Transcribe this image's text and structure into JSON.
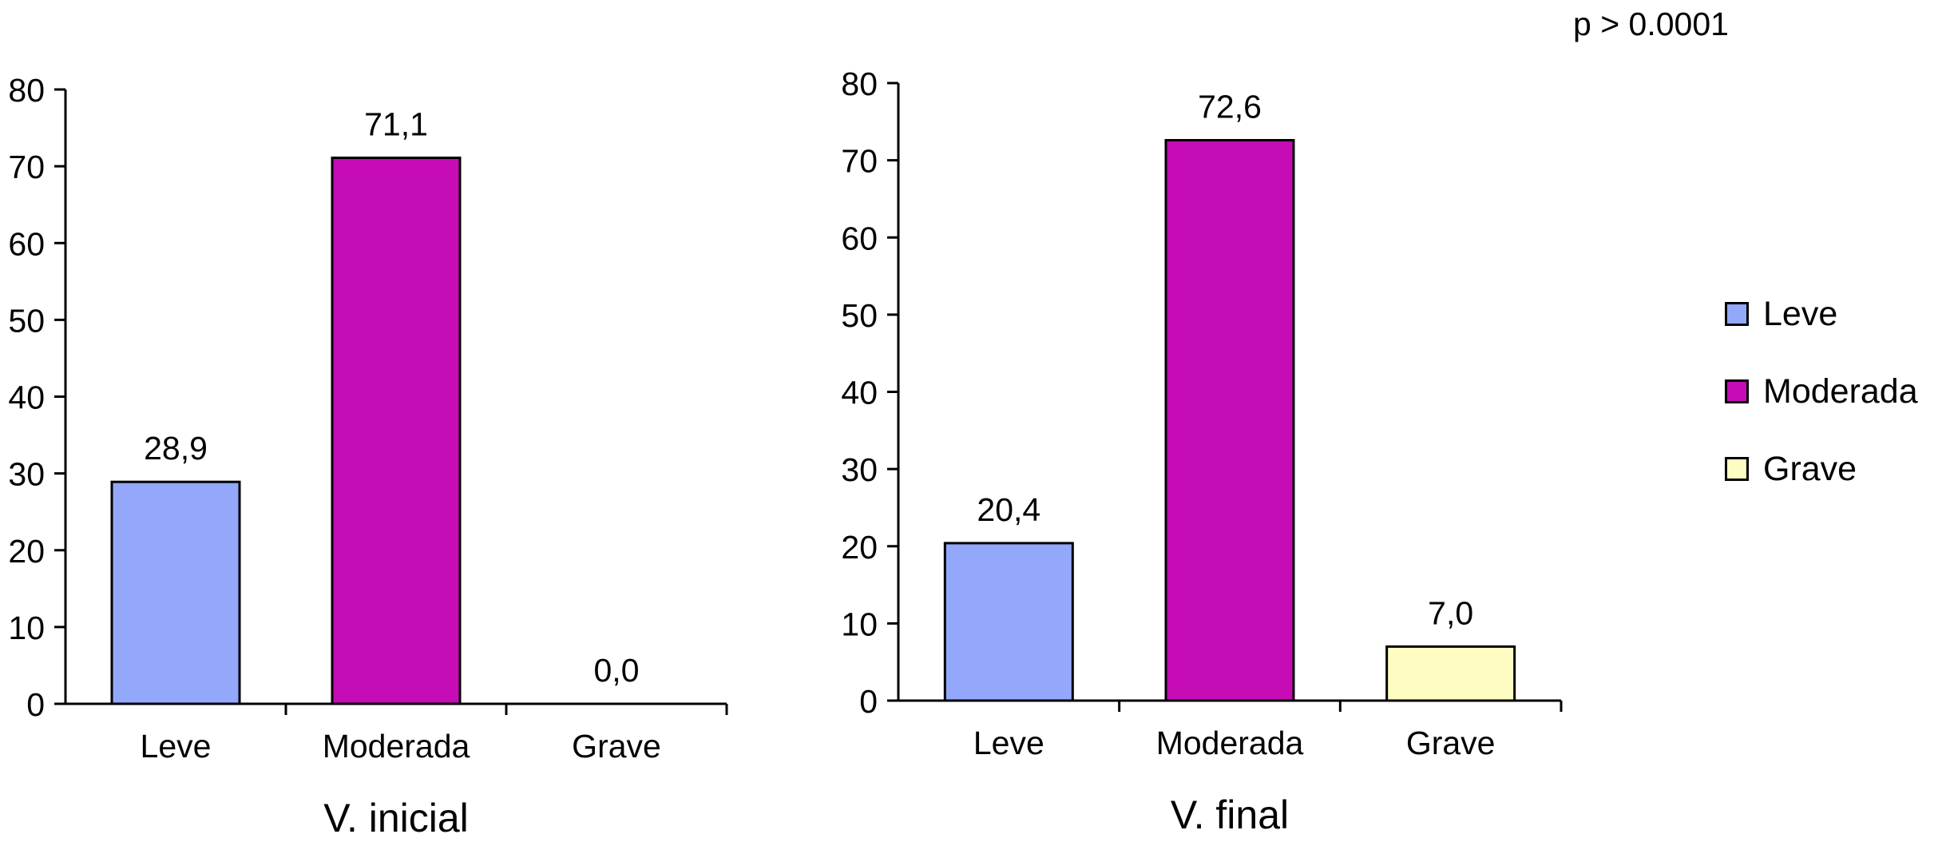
{
  "note": "p > 0.0001",
  "colors": {
    "Leve": "#93a7fb",
    "Moderada": "#c60cb4",
    "Grave": "#fdfcc3"
  },
  "legend": [
    {
      "label": "Leve",
      "color": "#93a7fb"
    },
    {
      "label": "Moderada",
      "color": "#c60cb4"
    },
    {
      "label": "Grave",
      "color": "#fdfcc3"
    }
  ],
  "chart_data": [
    {
      "type": "bar",
      "title": "",
      "xlabel": "V. inicial",
      "ylabel": "",
      "ylim": [
        0,
        80
      ],
      "yticks": [
        "0",
        "10",
        "20",
        "30",
        "40",
        "50",
        "60",
        "70",
        "80"
      ],
      "categories": [
        "Leve",
        "Moderada",
        "Grave"
      ],
      "values": [
        28.9,
        71.1,
        0.0
      ],
      "value_labels": [
        "28,9",
        "71,1",
        "0,0"
      ],
      "grid": false
    },
    {
      "type": "bar",
      "title": "",
      "xlabel": "V. final",
      "ylabel": "",
      "ylim": [
        0,
        80
      ],
      "yticks": [
        "0",
        "10",
        "20",
        "30",
        "40",
        "50",
        "60",
        "70",
        "80"
      ],
      "categories": [
        "Leve",
        "Moderada",
        "Grave"
      ],
      "values": [
        20.4,
        72.6,
        7.0
      ],
      "value_labels": [
        "20,4",
        "72,6",
        "7,0"
      ],
      "grid": false
    }
  ]
}
